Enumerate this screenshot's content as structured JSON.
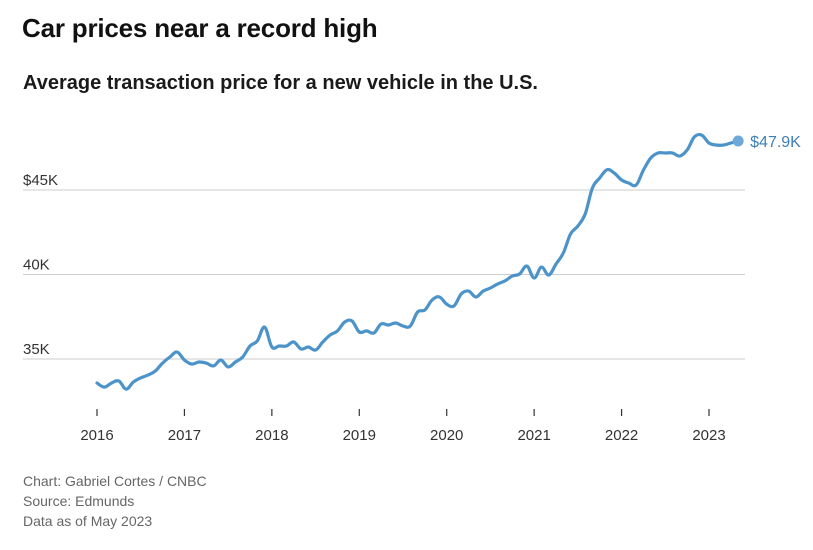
{
  "chart_data": {
    "type": "line",
    "title": "Car prices near a record high",
    "subtitle": "Average transaction price for a new vehicle in the U.S.",
    "xlabel": "",
    "ylabel": "",
    "unit": "thousand USD",
    "x_start": "2016-01",
    "x_frequency": "monthly",
    "x_ticks": [
      "2016",
      "2017",
      "2018",
      "2019",
      "2020",
      "2021",
      "2022",
      "2023"
    ],
    "y_ticks": [
      {
        "value": 35,
        "label": "35K"
      },
      {
        "value": 40,
        "label": "40K"
      },
      {
        "value": 45,
        "label": "$45K"
      }
    ],
    "ylim": [
      32.5,
      48.8
    ],
    "xlim": [
      2016.0,
      2023.4
    ],
    "grid": true,
    "series": [
      {
        "name": "Average transaction price",
        "color": "#4b93c9",
        "values": [
          33.58,
          33.34,
          33.58,
          33.7,
          33.22,
          33.64,
          33.88,
          34.05,
          34.29,
          34.76,
          35.12,
          35.41,
          34.94,
          34.7,
          34.82,
          34.76,
          34.59,
          34.94,
          34.53,
          34.82,
          35.12,
          35.77,
          36.07,
          36.89,
          35.71,
          35.77,
          35.77,
          36.01,
          35.59,
          35.71,
          35.53,
          36.01,
          36.42,
          36.66,
          37.19,
          37.25,
          36.6,
          36.66,
          36.54,
          37.07,
          37.01,
          37.13,
          36.95,
          36.95,
          37.78,
          37.9,
          38.49,
          38.67,
          38.25,
          38.14,
          38.85,
          39.02,
          38.67,
          39.02,
          39.2,
          39.44,
          39.62,
          39.91,
          40.03,
          40.5,
          39.79,
          40.44,
          39.97,
          40.62,
          41.27,
          42.4,
          42.87,
          43.58,
          45.12,
          45.71,
          46.2,
          46.0,
          45.59,
          45.41,
          45.3,
          46.18,
          46.89,
          47.19,
          47.19,
          47.19,
          47.01,
          47.37,
          48.14,
          48.25,
          47.78,
          47.66,
          47.66,
          47.78,
          47.9
        ]
      }
    ],
    "annotation": {
      "label": "$47.9K",
      "value": 47.9,
      "at": "May 2023"
    }
  },
  "footer": {
    "credit": "Chart: Gabriel Cortes / CNBC",
    "source": "Source: Edmunds",
    "data_as_of": "Data as of May 2023"
  }
}
